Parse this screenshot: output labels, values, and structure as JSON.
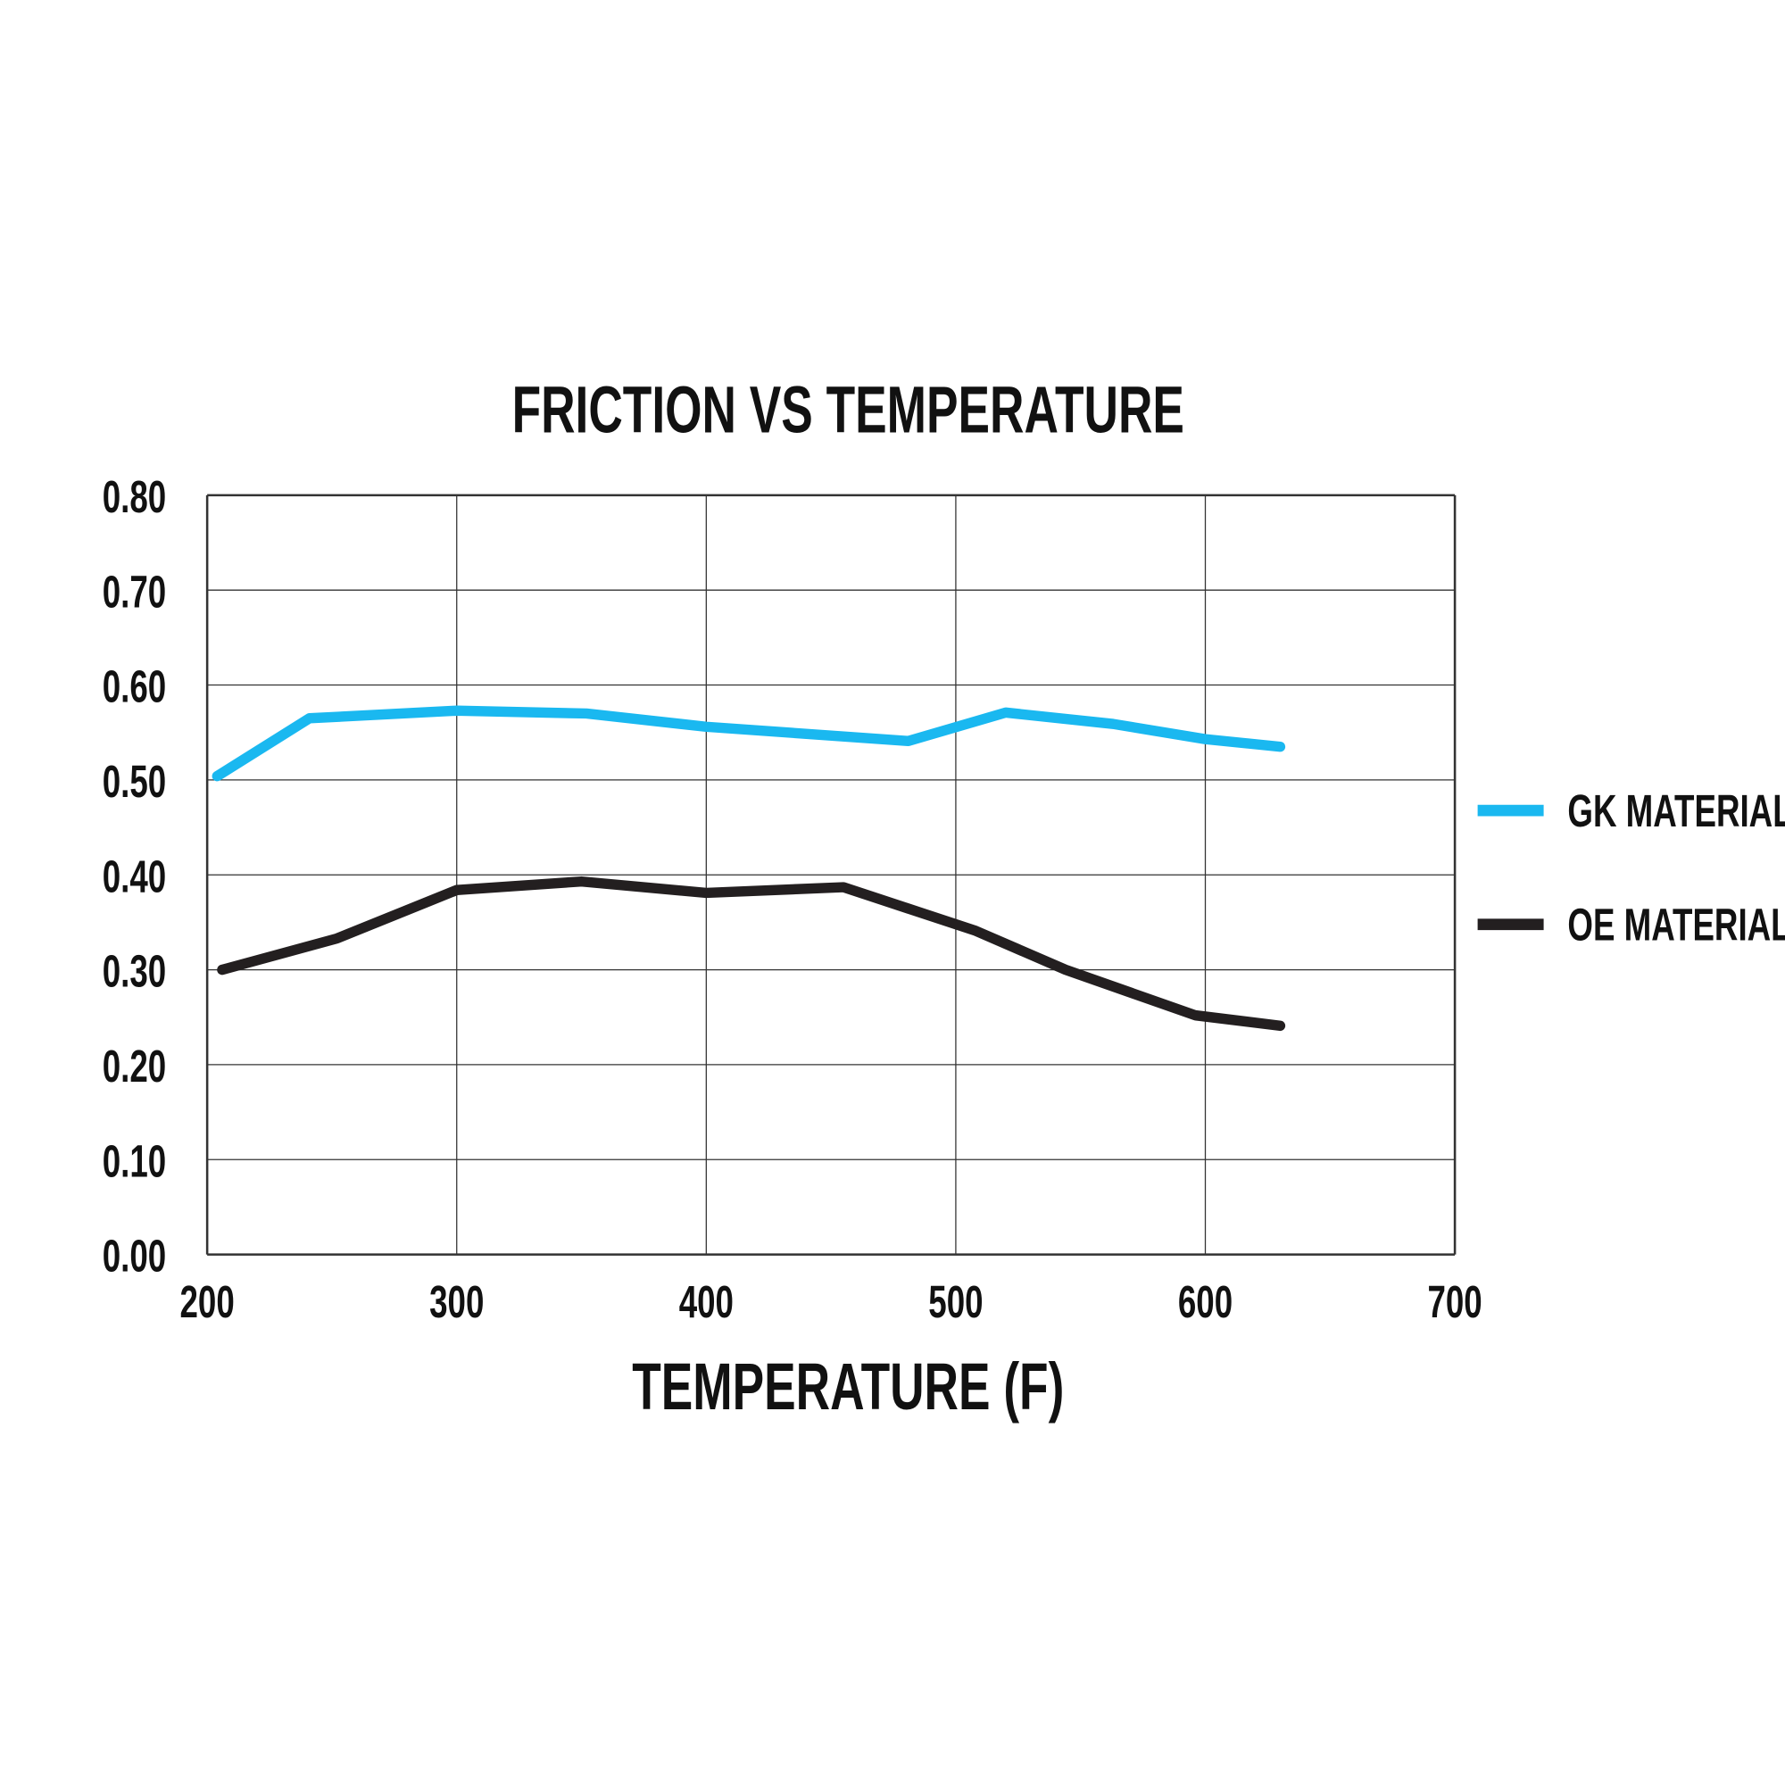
{
  "chart_data": {
    "type": "line",
    "title": "FRICTION VS TEMPERATURE",
    "xlabel": "TEMPERATURE (F)",
    "ylabel": "",
    "xlim": [
      200,
      700
    ],
    "ylim": [
      0,
      0.8
    ],
    "xticks": [
      "200",
      "300",
      "400",
      "500",
      "600",
      "700"
    ],
    "yticks": [
      "0.00",
      "0.10",
      "0.20",
      "0.30",
      "0.40",
      "0.50",
      "0.60",
      "0.70",
      "0.80"
    ],
    "grid": true,
    "legend_position": "right",
    "series": [
      {
        "name": "GK MATERIAL",
        "color": "#1ab8f0",
        "x": [
          204,
          241,
          300,
          352,
          400,
          481,
          520,
          563,
          600,
          630
        ],
        "y": [
          0.504,
          0.565,
          0.573,
          0.57,
          0.556,
          0.541,
          0.571,
          0.559,
          0.543,
          0.535
        ]
      },
      {
        "name": "OE MATERIAL",
        "color": "#231f20",
        "x": [
          206,
          252,
          300,
          350,
          400,
          455,
          508,
          544,
          596,
          630
        ],
        "y": [
          0.3,
          0.333,
          0.384,
          0.393,
          0.381,
          0.387,
          0.341,
          0.3,
          0.252,
          0.241
        ]
      }
    ]
  }
}
